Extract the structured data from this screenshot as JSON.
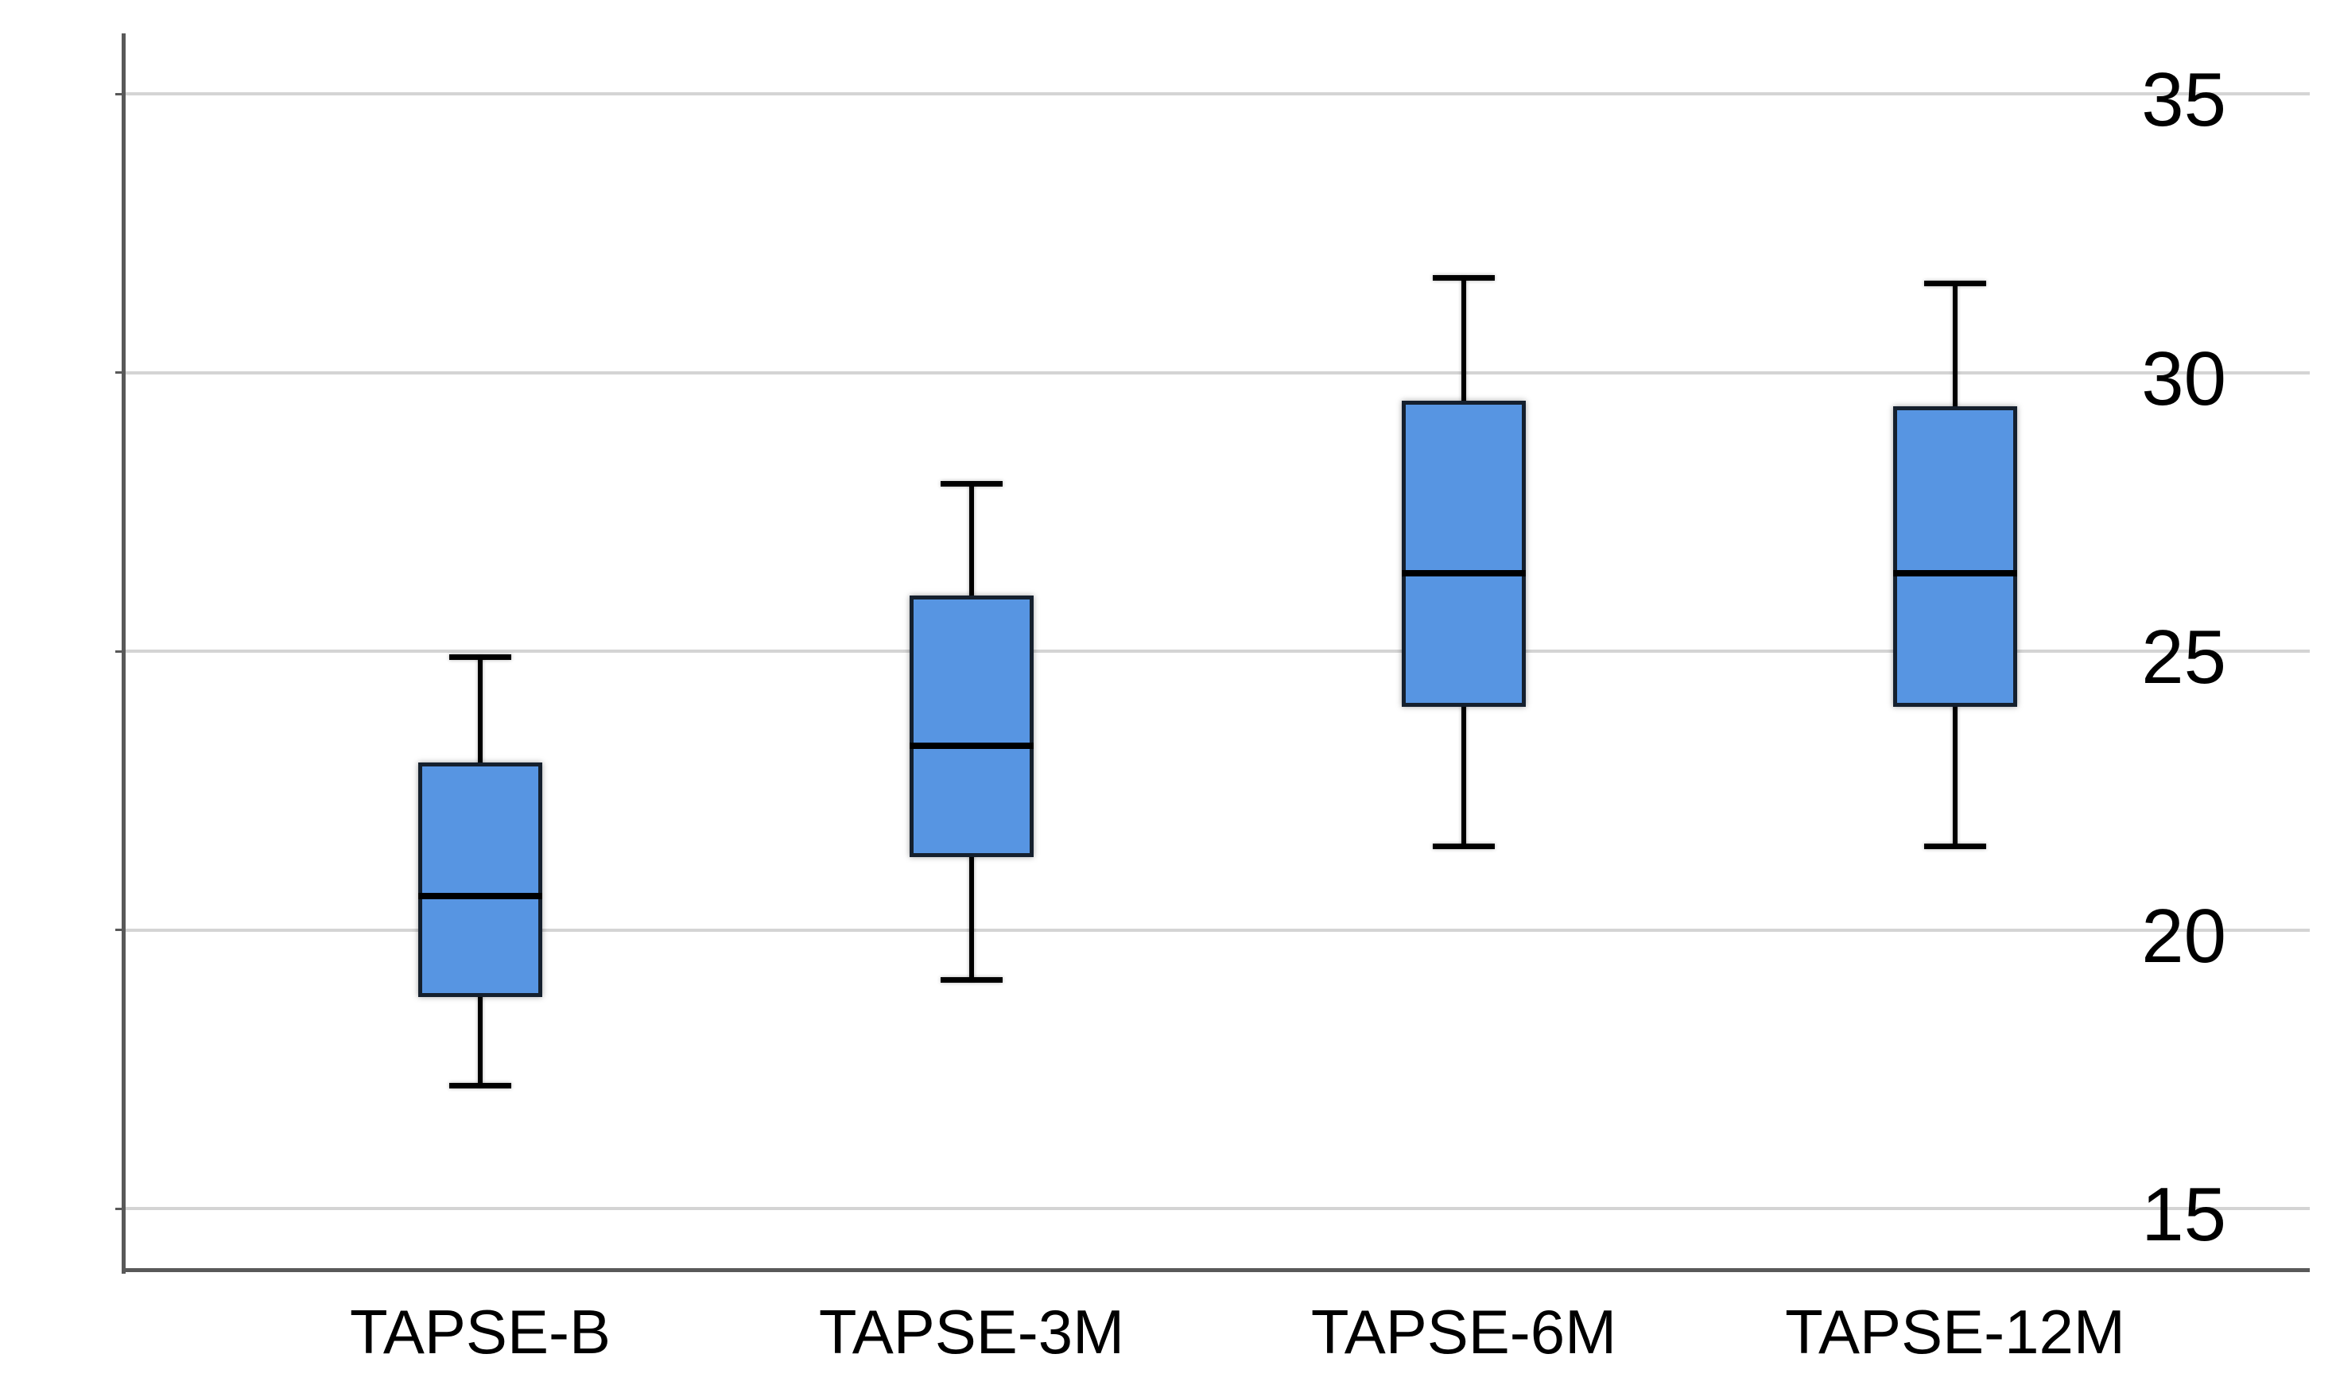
{
  "chart_data": {
    "type": "box",
    "title": "",
    "xlabel": "",
    "ylabel": "",
    "categories": [
      "TAPSE-B",
      "TAPSE-3M",
      "TAPSE-6M",
      "TAPSE-12M"
    ],
    "series": [
      {
        "name": "TAPSE-B",
        "whisker_low": 17.2,
        "q1": 18.8,
        "median": 20.6,
        "q3": 23.0,
        "whisker_high": 24.9
      },
      {
        "name": "TAPSE-3M",
        "whisker_low": 19.1,
        "q1": 21.3,
        "median": 23.3,
        "q3": 26.0,
        "whisker_high": 28.0
      },
      {
        "name": "TAPSE-6M",
        "whisker_low": 21.5,
        "q1": 24.0,
        "median": 26.4,
        "q3": 29.5,
        "whisker_high": 31.7
      },
      {
        "name": "TAPSE-12M",
        "whisker_low": 21.5,
        "q1": 24.0,
        "median": 26.4,
        "q3": 29.4,
        "whisker_high": 31.6
      }
    ],
    "yticks": [
      35,
      30,
      25,
      20,
      15
    ],
    "ylim": [
      13.9,
      36.1
    ],
    "grid": "horizontal",
    "legend": "none",
    "colors": {
      "box_fill": "#5795e2",
      "box_border": "#15202e",
      "median": "#000000",
      "whisker": "#000000",
      "gridline": "#d4d4d4",
      "axis": "#595959",
      "tick_label": "#000000",
      "background": "#ffffff"
    }
  }
}
